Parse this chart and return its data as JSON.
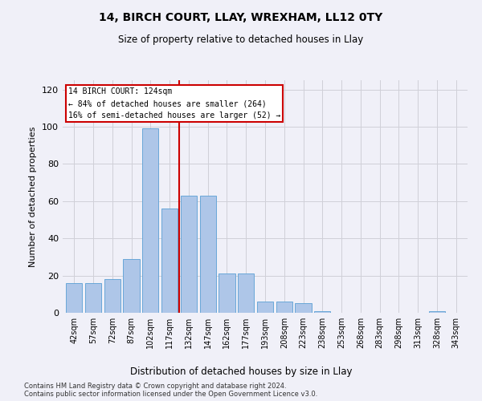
{
  "title1": "14, BIRCH COURT, LLAY, WREXHAM, LL12 0TY",
  "title2": "Size of property relative to detached houses in Llay",
  "xlabel": "Distribution of detached houses by size in Llay",
  "ylabel": "Number of detached properties",
  "categories": [
    "42sqm",
    "57sqm",
    "72sqm",
    "87sqm",
    "102sqm",
    "117sqm",
    "132sqm",
    "147sqm",
    "162sqm",
    "177sqm",
    "193sqm",
    "208sqm",
    "223sqm",
    "238sqm",
    "253sqm",
    "268sqm",
    "283sqm",
    "298sqm",
    "313sqm",
    "328sqm",
    "343sqm"
  ],
  "values": [
    16,
    16,
    18,
    29,
    99,
    56,
    63,
    63,
    21,
    21,
    6,
    6,
    5,
    1,
    0,
    0,
    0,
    0,
    0,
    1,
    0
  ],
  "bar_color": "#aec6e8",
  "bar_edge_color": "#5a9fd4",
  "annotation_text": "14 BIRCH COURT: 124sqm\n← 84% of detached houses are smaller (264)\n16% of semi-detached houses are larger (52) →",
  "annotation_box_color": "#ffffff",
  "annotation_box_edge": "#cc0000",
  "line_color": "#cc0000",
  "ylim": [
    0,
    125
  ],
  "yticks": [
    0,
    20,
    40,
    60,
    80,
    100,
    120
  ],
  "footer1": "Contains HM Land Registry data © Crown copyright and database right 2024.",
  "footer2": "Contains public sector information licensed under the Open Government Licence v3.0.",
  "bg_color": "#f0f0f8",
  "grid_color": "#d0d0d8"
}
